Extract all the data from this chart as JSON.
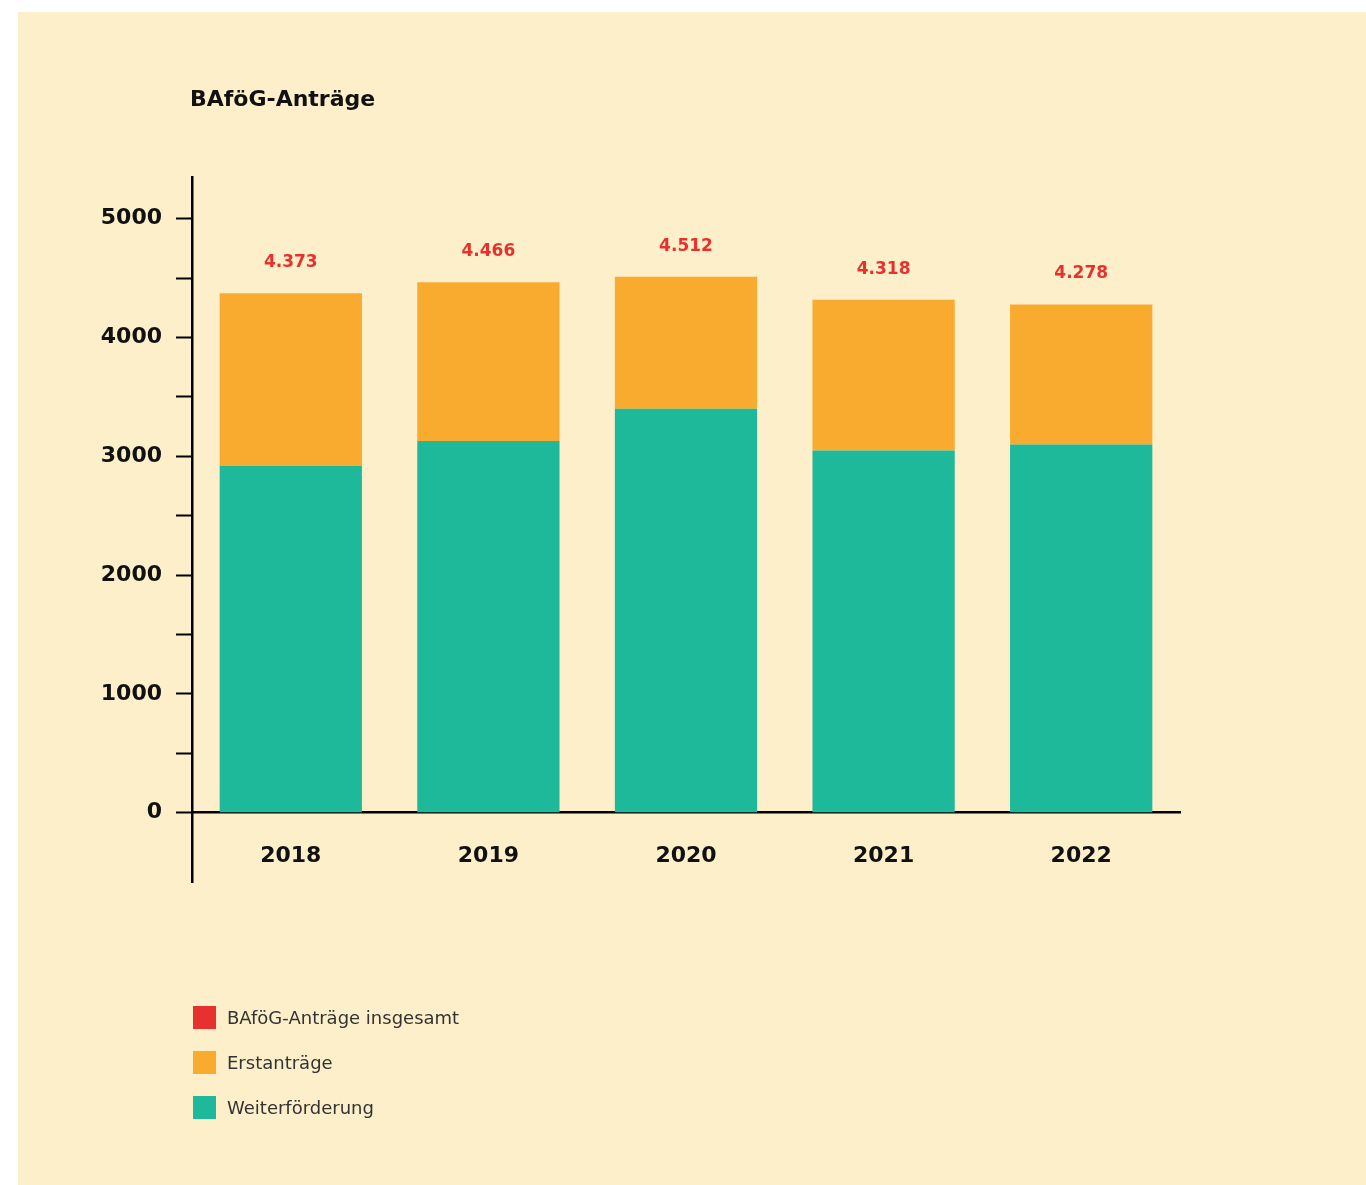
{
  "chart_data": {
    "type": "bar",
    "title": "BAföG-Anträge",
    "categories": [
      "2018",
      "2019",
      "2020",
      "2021",
      "2022"
    ],
    "series": [
      {
        "name": "BAföG-Anträge insgesamt",
        "color": "#e8312f",
        "values": [
          null,
          null,
          null,
          null,
          null
        ]
      },
      {
        "name": "Erstanträge",
        "color": "#f9ab30",
        "values": [
          1453,
          1336,
          1112,
          1268,
          1178
        ]
      },
      {
        "name": "Weiterförderung",
        "color": "#1eb99b",
        "values": [
          2920,
          3130,
          3400,
          3050,
          3100
        ]
      }
    ],
    "stacked": true,
    "totals": [
      "4.373",
      "4.466",
      "4.512",
      "4.318",
      "4.278"
    ],
    "ylim": [
      -590,
      5350
    ],
    "yticks": [
      0,
      {
        "value": 500,
        "label": null
      },
      1000,
      {
        "value": 1500,
        "label": null
      },
      2000,
      {
        "value": 2500,
        "label": null
      },
      3000,
      {
        "value": 3500,
        "label": null
      },
      4000,
      {
        "value": 4500,
        "label": null
      },
      5000
    ],
    "grid": false,
    "legend": "bottom left"
  }
}
